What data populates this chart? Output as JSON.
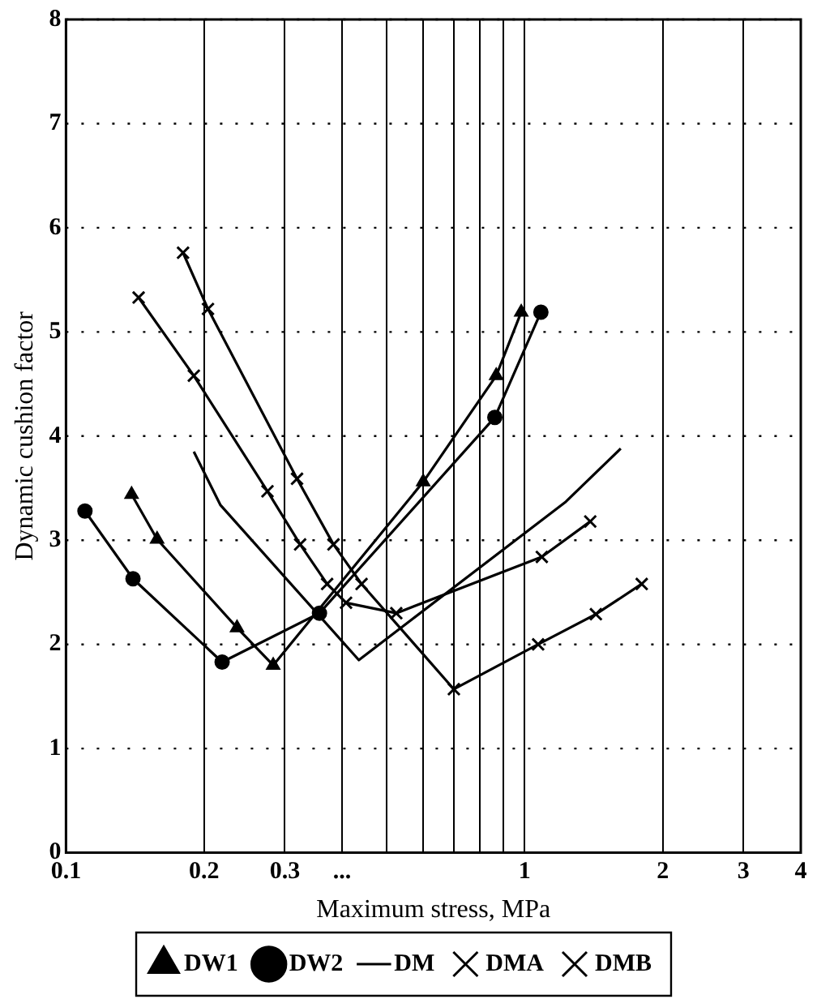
{
  "chart_data": {
    "type": "line",
    "xlabel": "Maximum stress, MPa",
    "ylabel": "Dynamic cushion factor",
    "log": "x",
    "xlim": [
      0.1,
      4
    ],
    "ylim": [
      0,
      8
    ],
    "xticks": [
      0.1,
      0.2,
      0.3,
      {
        "value": 0.4,
        "label": "..."
      },
      {
        "value": 0.5,
        "label": null
      },
      {
        "value": 0.6,
        "label": null
      },
      {
        "value": 0.7,
        "label": null
      },
      {
        "value": 0.8,
        "label": null
      },
      {
        "value": 0.9,
        "label": null
      },
      1,
      2,
      3,
      4
    ],
    "yticks": [
      0,
      1,
      2,
      3,
      4,
      5,
      6,
      7,
      8
    ],
    "grid": true,
    "legend": "bottom",
    "series": [
      {
        "name": "DW1",
        "color": "#000000",
        "marker": "triangle",
        "x": [
          0.139,
          0.158,
          0.236,
          0.283,
          0.601,
          0.867,
          0.983
        ],
        "values": [
          3.44,
          3.01,
          2.16,
          1.8,
          3.56,
          4.58,
          5.19
        ]
      },
      {
        "name": "DW2",
        "color": "#000000",
        "marker": "circle",
        "x": [
          0.11,
          0.14,
          0.219,
          0.357,
          0.861,
          1.085
        ],
        "values": [
          3.28,
          2.63,
          1.83,
          2.3,
          4.18,
          5.19
        ]
      },
      {
        "name": "DM",
        "color": "#000000",
        "marker": "none",
        "x": [
          0.19,
          0.217,
          0.435,
          1.23,
          1.62
        ],
        "values": [
          3.85,
          3.34,
          1.85,
          3.37,
          3.88
        ]
      },
      {
        "name": "DMA",
        "color": "#000000",
        "marker": "cross",
        "x": [
          0.144,
          0.19,
          0.275,
          0.324,
          0.371,
          0.408,
          0.525,
          1.09,
          1.39
        ],
        "values": [
          5.33,
          4.58,
          3.47,
          2.96,
          2.58,
          2.4,
          2.3,
          2.84,
          3.18
        ]
      },
      {
        "name": "DMB",
        "color": "#000000",
        "marker": "cross",
        "x": [
          0.18,
          0.204,
          0.319,
          0.383,
          0.441,
          0.701,
          1.07,
          1.43,
          1.8
        ],
        "values": [
          5.76,
          5.22,
          3.59,
          2.96,
          2.58,
          1.57,
          2.0,
          2.29,
          2.58
        ]
      }
    ]
  }
}
